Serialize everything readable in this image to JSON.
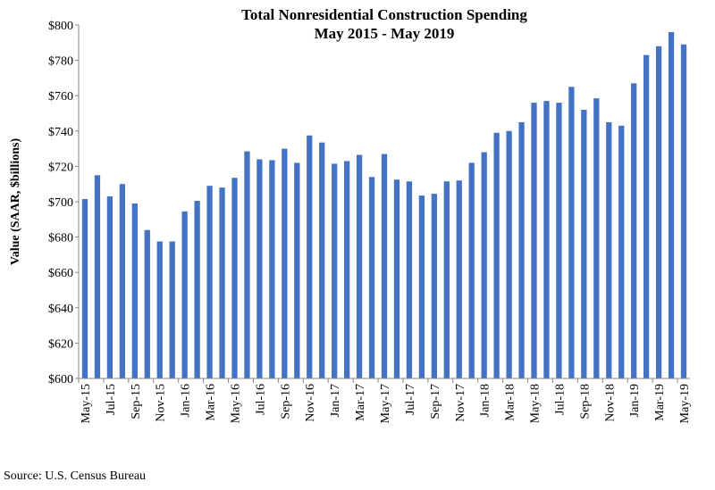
{
  "chart_data": {
    "type": "bar",
    "title": "Total Nonresidential Construction Spending",
    "subtitle": "May 2015 - May 2019",
    "xlabel": "",
    "ylabel": "Value (SAAR, $billions)",
    "ylim": [
      600,
      800
    ],
    "yticks": [
      "$600",
      "$620",
      "$640",
      "$660",
      "$680",
      "$700",
      "$720",
      "$740",
      "$760",
      "$780",
      "$800"
    ],
    "grid": false,
    "bar_color": "#4472C4",
    "categories": [
      "May-15",
      "Jun-15",
      "Jul-15",
      "Aug-15",
      "Sep-15",
      "Oct-15",
      "Nov-15",
      "Dec-15",
      "Jan-16",
      "Feb-16",
      "Mar-16",
      "Apr-16",
      "May-16",
      "Jun-16",
      "Jul-16",
      "Aug-16",
      "Sep-16",
      "Oct-16",
      "Nov-16",
      "Dec-16",
      "Jan-17",
      "Feb-17",
      "Mar-17",
      "Apr-17",
      "May-17",
      "Jun-17",
      "Jul-17",
      "Aug-17",
      "Sep-17",
      "Oct-17",
      "Nov-17",
      "Dec-17",
      "Jan-18",
      "Feb-18",
      "Mar-18",
      "Apr-18",
      "May-18",
      "Jun-18",
      "Jul-18",
      "Aug-18",
      "Sep-18",
      "Oct-18",
      "Nov-18",
      "Dec-18",
      "Jan-19",
      "Feb-19",
      "Mar-19",
      "Apr-19",
      "May-19"
    ],
    "xtick_labels": [
      "May-15",
      "Jul-15",
      "Sep-15",
      "Nov-15",
      "Jan-16",
      "Mar-16",
      "May-16",
      "Jul-16",
      "Sep-16",
      "Nov-16",
      "Jan-17",
      "Mar-17",
      "May-17",
      "Jul-17",
      "Sep-17",
      "Nov-17",
      "Jan-18",
      "Mar-18",
      "May-18",
      "Jul-18",
      "Sep-18",
      "Nov-18",
      "Jan-19",
      "Mar-19",
      "May-19"
    ],
    "values": [
      701.5,
      715,
      703,
      710,
      699,
      684,
      677.5,
      677.5,
      694.5,
      700.5,
      709,
      708,
      713.5,
      728.5,
      724,
      723.5,
      730,
      722,
      737.5,
      733.5,
      721.5,
      723,
      726.5,
      714,
      727,
      712.5,
      711.5,
      703.5,
      704.5,
      711.5,
      712,
      722,
      728,
      739,
      740,
      745,
      756,
      757,
      756,
      765,
      752,
      758.5,
      745,
      743,
      767,
      783,
      788,
      796,
      789
    ]
  },
  "source": "Source:  U.S. Census Bureau"
}
